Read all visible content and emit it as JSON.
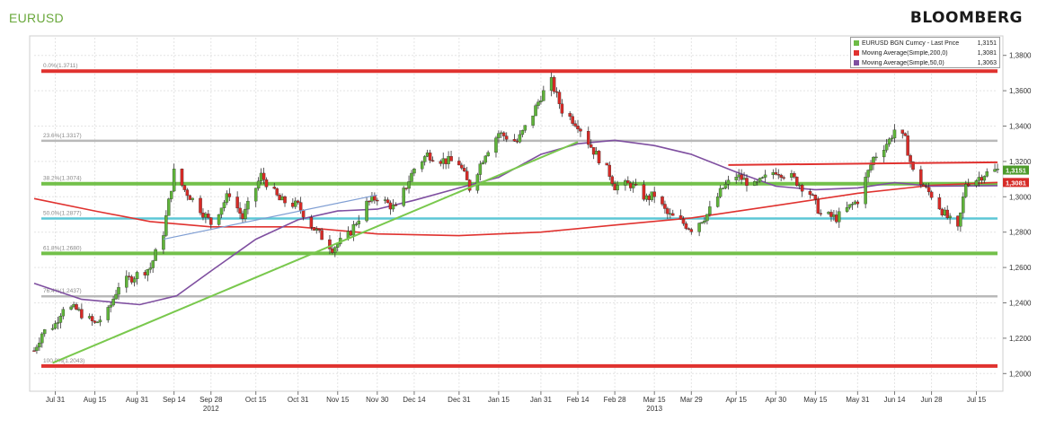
{
  "header": {
    "title": "EURUSD",
    "brand": "BLOOMBERG"
  },
  "chart_data": {
    "type": "candlestick",
    "title": "EURUSD",
    "ylim": [
      1.19,
      1.39
    ],
    "y_ticks": [
      "1,3800",
      "1,3600",
      "1,3400",
      "1,3200",
      "1,3000",
      "1,2800",
      "1,2600",
      "1,2400",
      "1,2200",
      "1,2000"
    ],
    "y_tick_values": [
      1.38,
      1.36,
      1.34,
      1.32,
      1.3,
      1.28,
      1.26,
      1.24,
      1.22,
      1.2
    ],
    "x_start": "2012-07-23",
    "x_end": "2013-07-23",
    "x_ticks": [
      {
        "date": "2012-07-31",
        "label": "Jul 31"
      },
      {
        "date": "2012-08-15",
        "label": "Aug 15"
      },
      {
        "date": "2012-08-31",
        "label": "Aug 31"
      },
      {
        "date": "2012-09-14",
        "label": "Sep 14"
      },
      {
        "date": "2012-09-28",
        "label": "Sep 28"
      },
      {
        "date": "2012-10-15",
        "label": "Oct 15"
      },
      {
        "date": "2012-10-31",
        "label": "Oct 31"
      },
      {
        "date": "2012-11-15",
        "label": "Nov 15"
      },
      {
        "date": "2012-11-30",
        "label": "Nov 30"
      },
      {
        "date": "2012-12-14",
        "label": "Dec 14"
      },
      {
        "date": "2012-12-31",
        "label": "Dec 31"
      },
      {
        "date": "2013-01-15",
        "label": "Jan 15"
      },
      {
        "date": "2013-01-31",
        "label": "Jan 31"
      },
      {
        "date": "2013-02-14",
        "label": "Feb 14"
      },
      {
        "date": "2013-02-28",
        "label": "Feb 28"
      },
      {
        "date": "2013-03-15",
        "label": "Mar 15"
      },
      {
        "date": "2013-03-29",
        "label": "Mar 29"
      },
      {
        "date": "2013-04-15",
        "label": "Apr 15"
      },
      {
        "date": "2013-04-30",
        "label": "Apr 30"
      },
      {
        "date": "2013-05-15",
        "label": "May 15"
      },
      {
        "date": "2013-05-31",
        "label": "May 31"
      },
      {
        "date": "2013-06-14",
        "label": "Jun 14"
      },
      {
        "date": "2013-06-28",
        "label": "Jun 28"
      },
      {
        "date": "2013-07-15",
        "label": "Jul 15"
      }
    ],
    "year_labels": [
      {
        "date": "2012-09-28",
        "label": "2012"
      },
      {
        "date": "2013-03-15",
        "label": "2013"
      }
    ],
    "grid": true,
    "legend_position": "top-right",
    "legend": [
      {
        "name": "EURUSD BGN Curncy - Last Price",
        "value": "1,3151",
        "color": "#6dbb45"
      },
      {
        "name": "Moving Average(Simple,200,0)",
        "value": "1,3081",
        "color": "#e0322f"
      },
      {
        "name": "Moving Average(Simple,50,0)",
        "value": "1,3063",
        "color": "#7f4fa0"
      }
    ],
    "last_price_labels": [
      {
        "value": 1.3151,
        "label": "1,3151",
        "color": "#4c9a2a"
      },
      {
        "value": 1.3081,
        "label": "1,3081",
        "color": "#d62b27"
      }
    ],
    "fib_levels": [
      {
        "value": 1.3711,
        "label": "0.0%(1.3711)",
        "color": "#e0322f"
      },
      {
        "value": 1.3317,
        "label": "23.6%(1.3317)",
        "color": "#b9b9b9"
      },
      {
        "value": 1.3074,
        "label": "38.2%(1.3074)",
        "color": "#73c04a"
      },
      {
        "value": 1.2877,
        "label": "50.0%(1.2877)",
        "color": "#5cc7d6"
      },
      {
        "value": 1.268,
        "label": "61.8%(1.2680)",
        "color": "#73c04a"
      },
      {
        "value": 1.2437,
        "label": "76.4%(1.2437)",
        "color": "#b9b9b9"
      },
      {
        "value": 1.2043,
        "label": "100.0%(1.2043)",
        "color": "#e0322f"
      }
    ],
    "trendlines": [
      {
        "from": {
          "date": "2012-07-30",
          "value": 1.206
        },
        "to": {
          "date": "2013-02-14",
          "value": 1.331
        },
        "color": "#79c84d"
      },
      {
        "from": {
          "date": "2012-09-10",
          "value": 1.276
        },
        "to": {
          "date": "2012-11-30",
          "value": 1.301
        },
        "color": "#7f9ed3"
      },
      {
        "from": {
          "date": "2013-04-12",
          "value": 1.318
        },
        "to": {
          "date": "2013-07-23",
          "value": 1.3195
        },
        "color": "#e0322f"
      }
    ],
    "ma200": [
      {
        "date": "2012-07-23",
        "value": 1.299
      },
      {
        "date": "2012-08-15",
        "value": 1.292
      },
      {
        "date": "2012-09-05",
        "value": 1.286
      },
      {
        "date": "2012-09-28",
        "value": 1.283
      },
      {
        "date": "2012-10-31",
        "value": 1.283
      },
      {
        "date": "2012-11-30",
        "value": 1.279
      },
      {
        "date": "2012-12-31",
        "value": 1.278
      },
      {
        "date": "2013-01-31",
        "value": 1.28
      },
      {
        "date": "2013-02-28",
        "value": 1.284
      },
      {
        "date": "2013-03-29",
        "value": 1.288
      },
      {
        "date": "2013-04-30",
        "value": 1.295
      },
      {
        "date": "2013-05-31",
        "value": 1.302
      },
      {
        "date": "2013-06-28",
        "value": 1.3065
      },
      {
        "date": "2013-07-23",
        "value": 1.3081
      }
    ],
    "ma50": [
      {
        "date": "2012-07-23",
        "value": 1.251
      },
      {
        "date": "2012-08-10",
        "value": 1.242
      },
      {
        "date": "2012-09-01",
        "value": 1.239
      },
      {
        "date": "2012-09-15",
        "value": 1.244
      },
      {
        "date": "2012-09-28",
        "value": 1.258
      },
      {
        "date": "2012-10-15",
        "value": 1.276
      },
      {
        "date": "2012-10-31",
        "value": 1.287
      },
      {
        "date": "2012-11-15",
        "value": 1.292
      },
      {
        "date": "2012-11-30",
        "value": 1.293
      },
      {
        "date": "2012-12-14",
        "value": 1.298
      },
      {
        "date": "2012-12-31",
        "value": 1.305
      },
      {
        "date": "2013-01-15",
        "value": 1.311
      },
      {
        "date": "2013-01-31",
        "value": 1.324
      },
      {
        "date": "2013-02-14",
        "value": 1.33
      },
      {
        "date": "2013-02-28",
        "value": 1.332
      },
      {
        "date": "2013-03-15",
        "value": 1.329
      },
      {
        "date": "2013-03-29",
        "value": 1.324
      },
      {
        "date": "2013-04-15",
        "value": 1.314
      },
      {
        "date": "2013-04-30",
        "value": 1.306
      },
      {
        "date": "2013-05-15",
        "value": 1.304
      },
      {
        "date": "2013-05-31",
        "value": 1.305
      },
      {
        "date": "2013-06-14",
        "value": 1.308
      },
      {
        "date": "2013-06-28",
        "value": 1.306
      },
      {
        "date": "2013-07-23",
        "value": 1.3063
      }
    ],
    "closes": [
      {
        "date": "2012-07-23",
        "value": 1.213
      },
      {
        "date": "2012-07-26",
        "value": 1.223
      },
      {
        "date": "2012-07-31",
        "value": 1.228
      },
      {
        "date": "2012-08-03",
        "value": 1.238
      },
      {
        "date": "2012-08-08",
        "value": 1.236
      },
      {
        "date": "2012-08-15",
        "value": 1.228
      },
      {
        "date": "2012-08-20",
        "value": 1.235
      },
      {
        "date": "2012-08-24",
        "value": 1.25
      },
      {
        "date": "2012-08-31",
        "value": 1.256
      },
      {
        "date": "2012-09-05",
        "value": 1.26
      },
      {
        "date": "2012-09-10",
        "value": 1.28
      },
      {
        "date": "2012-09-14",
        "value": 1.314
      },
      {
        "date": "2012-09-18",
        "value": 1.304
      },
      {
        "date": "2012-09-24",
        "value": 1.293
      },
      {
        "date": "2012-09-28",
        "value": 1.285
      },
      {
        "date": "2012-10-05",
        "value": 1.302
      },
      {
        "date": "2012-10-10",
        "value": 1.288
      },
      {
        "date": "2012-10-17",
        "value": 1.312
      },
      {
        "date": "2012-10-24",
        "value": 1.298
      },
      {
        "date": "2012-10-31",
        "value": 1.295
      },
      {
        "date": "2012-11-06",
        "value": 1.282
      },
      {
        "date": "2012-11-13",
        "value": 1.271
      },
      {
        "date": "2012-11-19",
        "value": 1.278
      },
      {
        "date": "2012-11-26",
        "value": 1.296
      },
      {
        "date": "2012-11-30",
        "value": 1.3
      },
      {
        "date": "2012-12-07",
        "value": 1.293
      },
      {
        "date": "2012-12-14",
        "value": 1.316
      },
      {
        "date": "2012-12-19",
        "value": 1.324
      },
      {
        "date": "2012-12-24",
        "value": 1.321
      },
      {
        "date": "2012-12-31",
        "value": 1.319
      },
      {
        "date": "2013-01-04",
        "value": 1.305
      },
      {
        "date": "2013-01-10",
        "value": 1.325
      },
      {
        "date": "2013-01-15",
        "value": 1.336
      },
      {
        "date": "2013-01-22",
        "value": 1.331
      },
      {
        "date": "2013-01-28",
        "value": 1.347
      },
      {
        "date": "2013-01-31",
        "value": 1.357
      },
      {
        "date": "2013-02-04",
        "value": 1.365
      },
      {
        "date": "2013-02-08",
        "value": 1.349
      },
      {
        "date": "2013-02-14",
        "value": 1.341
      },
      {
        "date": "2013-02-20",
        "value": 1.326
      },
      {
        "date": "2013-02-26",
        "value": 1.313
      },
      {
        "date": "2013-02-28",
        "value": 1.306
      },
      {
        "date": "2013-03-06",
        "value": 1.307
      },
      {
        "date": "2013-03-12",
        "value": 1.299
      },
      {
        "date": "2013-03-15",
        "value": 1.301
      },
      {
        "date": "2013-03-20",
        "value": 1.29
      },
      {
        "date": "2013-03-26",
        "value": 1.285
      },
      {
        "date": "2013-03-29",
        "value": 1.282
      },
      {
        "date": "2013-04-04",
        "value": 1.29
      },
      {
        "date": "2013-04-10",
        "value": 1.305
      },
      {
        "date": "2013-04-15",
        "value": 1.312
      },
      {
        "date": "2013-04-22",
        "value": 1.306
      },
      {
        "date": "2013-04-30",
        "value": 1.315
      },
      {
        "date": "2013-05-06",
        "value": 1.311
      },
      {
        "date": "2013-05-13",
        "value": 1.302
      },
      {
        "date": "2013-05-17",
        "value": 1.29
      },
      {
        "date": "2013-05-23",
        "value": 1.288
      },
      {
        "date": "2013-05-31",
        "value": 1.298
      },
      {
        "date": "2013-06-06",
        "value": 1.322
      },
      {
        "date": "2013-06-12",
        "value": 1.332
      },
      {
        "date": "2013-06-14",
        "value": 1.338
      },
      {
        "date": "2013-06-18",
        "value": 1.332
      },
      {
        "date": "2013-06-21",
        "value": 1.314
      },
      {
        "date": "2013-06-26",
        "value": 1.304
      },
      {
        "date": "2013-06-28",
        "value": 1.301
      },
      {
        "date": "2013-07-03",
        "value": 1.29
      },
      {
        "date": "2013-07-08",
        "value": 1.281
      },
      {
        "date": "2013-07-11",
        "value": 1.308
      },
      {
        "date": "2013-07-15",
        "value": 1.31
      },
      {
        "date": "2013-07-18",
        "value": 1.313
      },
      {
        "date": "2013-07-23",
        "value": 1.3151
      }
    ]
  }
}
